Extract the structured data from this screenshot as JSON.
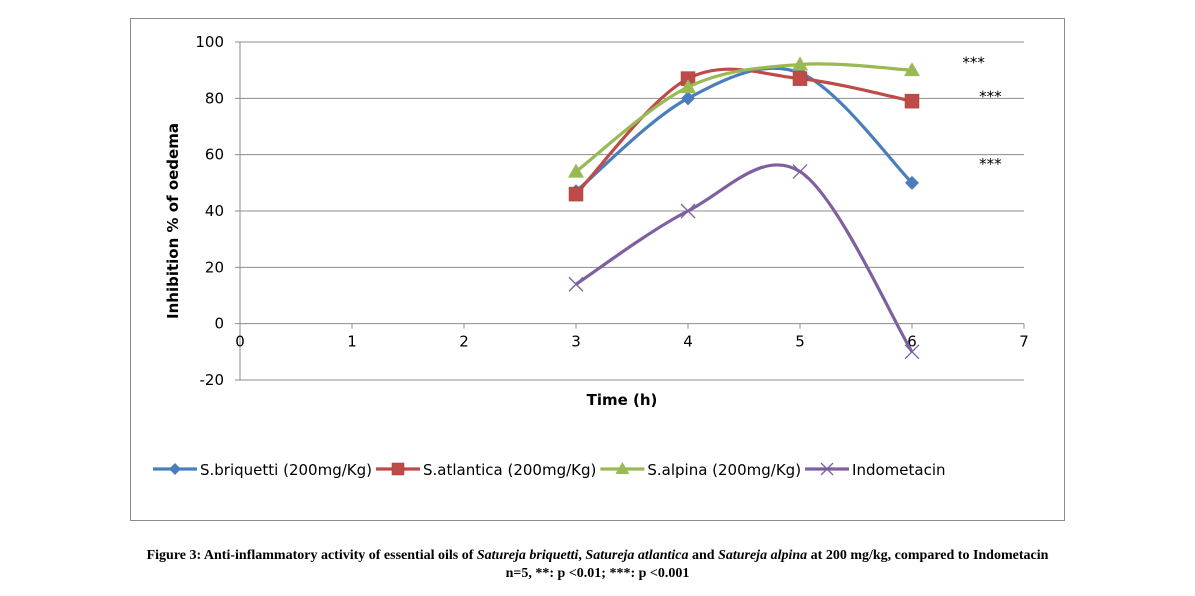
{
  "chart_data": {
    "type": "line",
    "xlabel": "Time (h)",
    "ylabel": "Inhibition % of oedema",
    "xlim": [
      0,
      7
    ],
    "ylim": [
      -20,
      100
    ],
    "x_ticks": [
      "0",
      "1",
      "2",
      "3",
      "4",
      "5",
      "6",
      "7"
    ],
    "y_ticks": [
      "-20",
      "0",
      "20",
      "40",
      "60",
      "80",
      "100"
    ],
    "grid": "horizontal",
    "legend_position": "bottom",
    "series": [
      {
        "name": "S.briquetti (200mg/Kg)",
        "marker": "diamond",
        "color": "#4a7ebb",
        "x": [
          3,
          4,
          5,
          6
        ],
        "y": [
          47,
          80,
          89,
          50
        ]
      },
      {
        "name": "S.atlantica (200mg/Kg)",
        "marker": "square",
        "color": "#be4b48",
        "x": [
          3,
          4,
          5,
          6
        ],
        "y": [
          46,
          87,
          87,
          79
        ]
      },
      {
        "name": "S.alpina (200mg/Kg)",
        "marker": "triangle",
        "color": "#98b954",
        "x": [
          3,
          4,
          5,
          6
        ],
        "y": [
          54,
          84,
          92,
          90
        ]
      },
      {
        "name": "Indometacin",
        "marker": "x",
        "color": "#7d60a0",
        "x": [
          3,
          4,
          5,
          6
        ],
        "y": [
          14,
          40,
          54,
          -10
        ]
      }
    ],
    "annotations": [
      {
        "text": "***",
        "x": 6.55,
        "y": 93
      },
      {
        "text": "***",
        "x": 6.7,
        "y": 81
      },
      {
        "text": "***",
        "x": 6.7,
        "y": 57
      }
    ]
  },
  "caption": {
    "line1_parts": [
      {
        "text": "Figure 3: Anti-inflammatory activity of essential oils of ",
        "italic": false
      },
      {
        "text": "Satureja briquetti",
        "italic": true
      },
      {
        "text": ", ",
        "italic": false
      },
      {
        "text": "Satureja atlantica",
        "italic": true
      },
      {
        "text": " and ",
        "italic": false
      },
      {
        "text": "Satureja alpina",
        "italic": true
      },
      {
        "text": " at 200 mg/kg, compared to Indometacin",
        "italic": false
      }
    ],
    "line2": "n=5, **: p <0.01; ***: p <0.001"
  }
}
